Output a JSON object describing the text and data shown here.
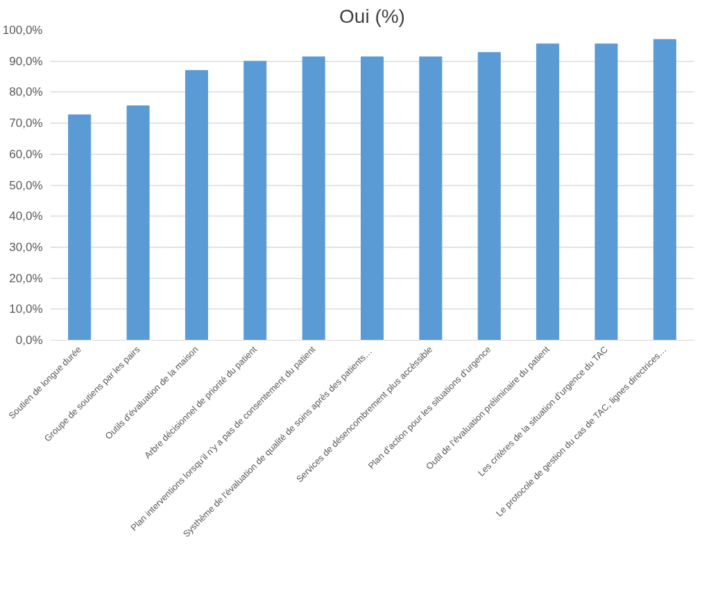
{
  "chart_data": {
    "type": "bar",
    "title": "Oui (%)",
    "categories": [
      "Soutien de longue durée",
      "Groupe de soutiens par les pairs",
      "Outils d'évaluation de la maison",
      "Arbre décisionnel de priorité du patient",
      "Plan interventions lorsqu'il n'y a pas de consentement du patient",
      "Systhème de  l'évaluation de qualité de soins après des patients…",
      "Services de désencombrement plus accèssible",
      "Plan d’action pour les situations d’urgence",
      "Outil de l’évaluation préliminaire du patient",
      "Les critères de la situation d’urgence du TAC",
      "Le protocole de gestion du cas de TAC, lignes directrices…"
    ],
    "values": [
      72.7,
      75.6,
      87.0,
      90.0,
      91.4,
      91.4,
      91.4,
      92.8,
      95.6,
      95.6,
      97.0
    ],
    "color": "#5b9bd5",
    "ylim": [
      0,
      100
    ],
    "yticks": [
      {
        "value": 0,
        "label": "0,0%"
      },
      {
        "value": 10,
        "label": "10,0%"
      },
      {
        "value": 20,
        "label": "20,0%"
      },
      {
        "value": 30,
        "label": "30,0%"
      },
      {
        "value": 40,
        "label": "40,0%"
      },
      {
        "value": 50,
        "label": "50,0%"
      },
      {
        "value": 60,
        "label": "60,0%"
      },
      {
        "value": 70,
        "label": "70,0%"
      },
      {
        "value": 80,
        "label": "80,0%"
      },
      {
        "value": 90,
        "label": "90,0%"
      },
      {
        "value": 100,
        "label": "100,0%"
      }
    ],
    "grid": "y"
  }
}
